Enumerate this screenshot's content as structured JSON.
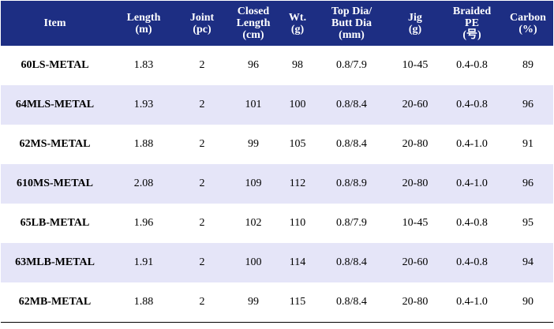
{
  "header": {
    "item": "Item",
    "length": [
      "Length",
      "(m)"
    ],
    "joint": [
      "Joint",
      "(pc)"
    ],
    "closed_length": [
      "Closed",
      "Length",
      "(cm)"
    ],
    "weight": [
      "Wt.",
      "(g)"
    ],
    "dia": [
      "Top Dia/",
      "Butt Dia",
      "(mm)"
    ],
    "jig": [
      "Jig",
      "(g)"
    ],
    "braided_pe": [
      "Braided",
      "PE",
      "(号)"
    ],
    "carbon": [
      "Carbon",
      "(%)"
    ]
  },
  "rows": [
    [
      "60LS-METAL",
      "1.83",
      "2",
      "96",
      "98",
      "0.8/7.9",
      "10-45",
      "0.4-0.8",
      "89"
    ],
    [
      "64MLS-METAL",
      "1.93",
      "2",
      "101",
      "100",
      "0.8/8.4",
      "20-60",
      "0.4-0.8",
      "96"
    ],
    [
      "62MS-METAL",
      "1.88",
      "2",
      "99",
      "105",
      "0.8/8.4",
      "20-80",
      "0.4-1.0",
      "91"
    ],
    [
      "610MS-METAL",
      "2.08",
      "2",
      "109",
      "112",
      "0.8/8.9",
      "20-80",
      "0.4-1.0",
      "96"
    ],
    [
      "65LB-METAL",
      "1.96",
      "2",
      "102",
      "110",
      "0.8/7.9",
      "10-45",
      "0.4-0.8",
      "95"
    ],
    [
      "63MLB-METAL",
      "1.91",
      "2",
      "100",
      "114",
      "0.8/8.4",
      "20-60",
      "0.4-0.8",
      "94"
    ],
    [
      "62MB-METAL",
      "1.88",
      "2",
      "99",
      "115",
      "0.8/8.4",
      "20-80",
      "0.4-1.0",
      "90"
    ]
  ],
  "colors": {
    "header_bg": "#1d2e83",
    "header_text": "#ffffff",
    "row_alt_bg": "#e5e5f8",
    "row_bg": "#ffffff"
  }
}
